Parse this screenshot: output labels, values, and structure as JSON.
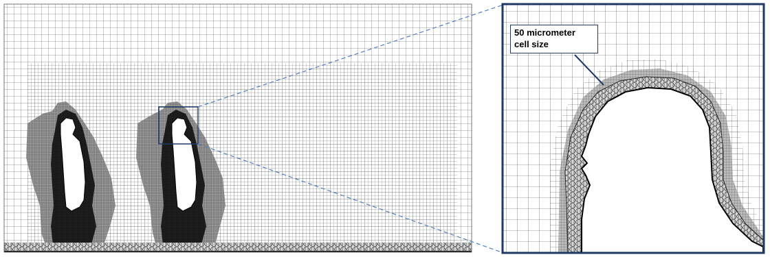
{
  "annotation": {
    "line1": "50 micrometer",
    "line2": "cell size"
  },
  "colors": {
    "mesh_line": "#3a3a3a",
    "refined_mesh": "#8a8a8a",
    "boundary_layer": "#111111",
    "body_fill": "#ffffff",
    "frame": "#1f3864",
    "zoom_line": "#4f7fbf"
  }
}
